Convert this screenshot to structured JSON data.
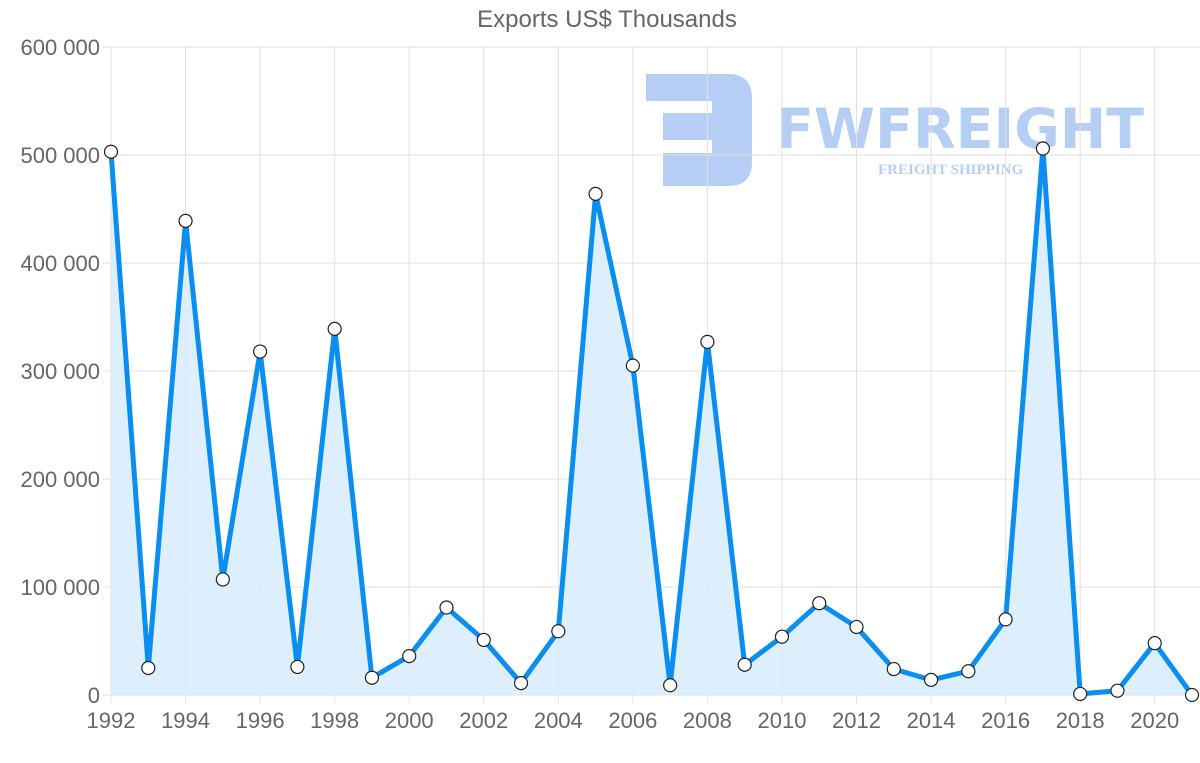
{
  "chart_data": {
    "type": "area",
    "title": "Exports US$ Thousands",
    "xlabel": "",
    "ylabel": "",
    "x": [
      1992,
      1993,
      1994,
      1995,
      1996,
      1997,
      1998,
      1999,
      2000,
      2001,
      2002,
      2003,
      2004,
      2005,
      2006,
      2007,
      2008,
      2009,
      2010,
      2011,
      2012,
      2013,
      2014,
      2015,
      2016,
      2017,
      2018,
      2019,
      2020,
      2021
    ],
    "series": [
      {
        "name": "Exports US$ Thousands",
        "color": "#0a8ff0",
        "fill": "#d9ecfc",
        "values": [
          503000,
          25000,
          439000,
          107000,
          318000,
          26000,
          339000,
          16000,
          36000,
          81000,
          51000,
          11000,
          59000,
          464000,
          305000,
          9000,
          327000,
          28000,
          54000,
          85000,
          63000,
          24000,
          14000,
          22000,
          70000,
          506000,
          1000,
          4000,
          48000,
          0
        ]
      }
    ],
    "ylim": [
      0,
      600000
    ],
    "yticks": [
      0,
      100000,
      200000,
      300000,
      400000,
      500000,
      600000
    ],
    "ytick_labels": [
      "0",
      "100 000",
      "200 000",
      "300 000",
      "400 000",
      "500 000",
      "600 000"
    ],
    "xtick_labels": [
      "1992",
      "1994",
      "1996",
      "1998",
      "2000",
      "2002",
      "2004",
      "2006",
      "2008",
      "2010",
      "2012",
      "2014",
      "2016",
      "2018",
      "2020"
    ],
    "grid": true,
    "legend": "none"
  },
  "watermark": {
    "brand": "FWFREIGHT",
    "tagline": "FREIGHT SHIPPING",
    "color": "#a9c6f2"
  }
}
